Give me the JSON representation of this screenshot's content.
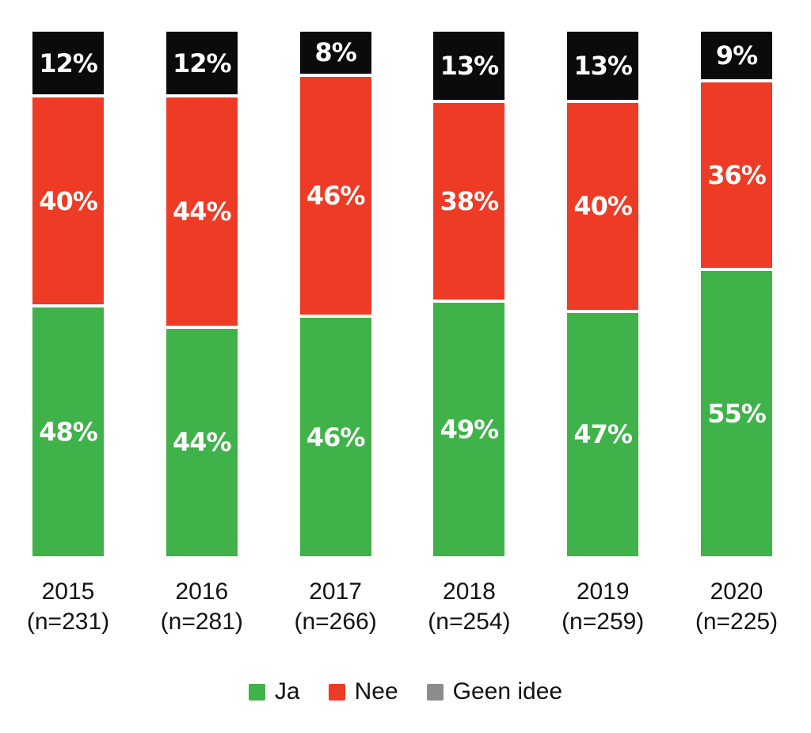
{
  "chart_data": {
    "type": "bar",
    "stacked": true,
    "orientation": "vertical",
    "title": "",
    "xlabel": "",
    "ylabel": "",
    "ylim": [
      0,
      100
    ],
    "grid": false,
    "legend_position": "bottom",
    "value_label_color": "#FFFFFF",
    "stack_order_top_to_bottom": [
      "Geen idee",
      "Nee",
      "Ja"
    ],
    "categories": [
      {
        "year": "2015",
        "n_label": "(n=231)"
      },
      {
        "year": "2016",
        "n_label": "(n=281)"
      },
      {
        "year": "2017",
        "n_label": "(n=266)"
      },
      {
        "year": "2018",
        "n_label": "(n=254)"
      },
      {
        "year": "2019",
        "n_label": "(n=259)"
      },
      {
        "year": "2020",
        "n_label": "(n=225)"
      }
    ],
    "series": [
      {
        "name": "Ja",
        "color": "#3FB24A",
        "values": [
          48,
          44,
          46,
          49,
          47,
          55
        ],
        "labels": [
          "48%",
          "44%",
          "46%",
          "49%",
          "47%",
          "55%"
        ]
      },
      {
        "name": "Nee",
        "color": "#EE3B26",
        "values": [
          40,
          44,
          46,
          38,
          40,
          36
        ],
        "labels": [
          "40%",
          "44%",
          "46%",
          "38%",
          "40%",
          "36%"
        ]
      },
      {
        "name": "Geen idee",
        "color": "#8C8C8C",
        "bar_color": "#0B0B0B",
        "values": [
          12,
          12,
          8,
          13,
          13,
          9
        ],
        "labels": [
          "12%",
          "12%",
          "8%",
          "13%",
          "13%",
          "9%"
        ]
      }
    ]
  },
  "legend": {
    "items": [
      {
        "label": "Ja",
        "color": "#3FB24A"
      },
      {
        "label": "Nee",
        "color": "#EE3B26"
      },
      {
        "label": "Geen idee",
        "color": "#8C8C8C"
      }
    ]
  }
}
